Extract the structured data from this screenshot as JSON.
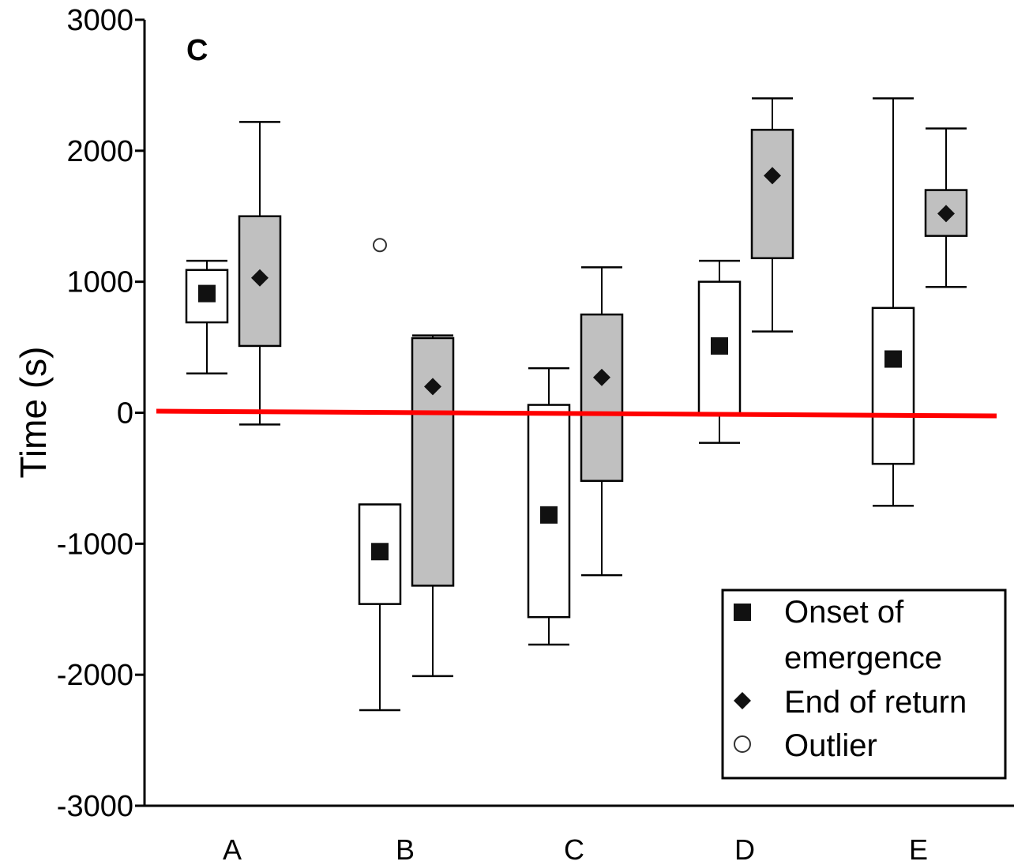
{
  "chart_data": {
    "type": "box",
    "panel_label": "C",
    "ylabel": "Time (s)",
    "xlabel": "",
    "ylim": [
      -3000,
      3000
    ],
    "yticks": [
      3000,
      2000,
      1000,
      0,
      -1000,
      -2000,
      -3000
    ],
    "ytick_labels": [
      "3000",
      "2000",
      "1000",
      "0",
      "-1000",
      "-2000",
      "-3000"
    ],
    "categories": [
      "A",
      "B",
      "C",
      "D",
      "E"
    ],
    "reference_line": {
      "y": 0,
      "color": "#ff0000"
    },
    "series": [
      {
        "name": "Onset of emergence",
        "box_fill": "#ffffff",
        "marker": "square",
        "boxes": [
          {
            "category": "A",
            "whisker_low": 300,
            "q1": 690,
            "mean": 910,
            "q3": 1090,
            "whisker_high": 1160
          },
          {
            "category": "B",
            "whisker_low": -2270,
            "q1": -1460,
            "mean": -1060,
            "q3": -700,
            "whisker_high": -700
          },
          {
            "category": "C",
            "whisker_low": -1770,
            "q1": -1560,
            "mean": -780,
            "q3": 60,
            "whisker_high": 340
          },
          {
            "category": "D",
            "whisker_low": -230,
            "q1": -20,
            "mean": 510,
            "q3": 1000,
            "whisker_high": 1160
          },
          {
            "category": "E",
            "whisker_low": -710,
            "q1": -390,
            "mean": 410,
            "q3": 800,
            "whisker_high": 2400
          }
        ]
      },
      {
        "name": "End of return",
        "box_fill": "#c0c0c0",
        "marker": "diamond",
        "boxes": [
          {
            "category": "A",
            "whisker_low": -90,
            "q1": 510,
            "mean": 1030,
            "q3": 1500,
            "whisker_high": 2220
          },
          {
            "category": "B",
            "whisker_low": -2010,
            "q1": -1320,
            "mean": 200,
            "q3": 570,
            "whisker_high": 590
          },
          {
            "category": "C",
            "whisker_low": -1240,
            "q1": -520,
            "mean": 270,
            "q3": 750,
            "whisker_high": 1110
          },
          {
            "category": "D",
            "whisker_low": 620,
            "q1": 1180,
            "mean": 1810,
            "q3": 2160,
            "whisker_high": 2400
          },
          {
            "category": "E",
            "whisker_low": 960,
            "q1": 1350,
            "mean": 1520,
            "q3": 1700,
            "whisker_high": 2170
          }
        ]
      }
    ],
    "outliers": [
      {
        "category": "B",
        "series": "Onset of emergence",
        "y": 1280
      }
    ],
    "legend": {
      "placement": "bottom-right",
      "entries": [
        {
          "marker": "square",
          "label_lines": [
            "Onset of",
            "emergence"
          ]
        },
        {
          "marker": "diamond",
          "label_lines": [
            "End of return"
          ]
        },
        {
          "marker": "circle-open",
          "label_lines": [
            "Outlier"
          ]
        }
      ]
    }
  }
}
